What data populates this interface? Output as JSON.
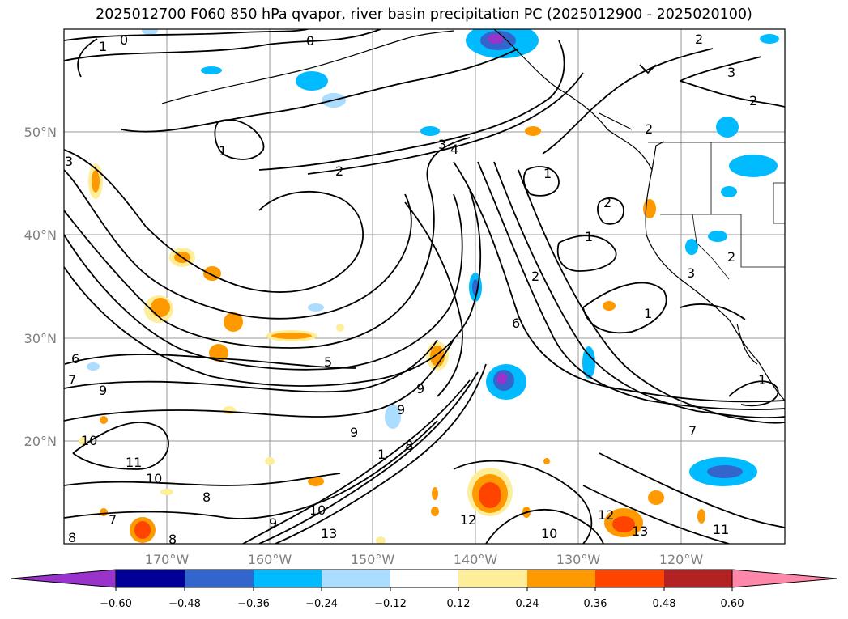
{
  "title": "2025012700 F060 850 hPa qvapor, river basin precipitation PC (2025012900 - 2025020100)",
  "lat_labels": [
    "50°N",
    "40°N",
    "30°N",
    "20°N"
  ],
  "lon_labels": [
    "170°W",
    "160°W",
    "150°W",
    "140°W",
    "130°W",
    "120°W"
  ],
  "colorbar": {
    "colors": [
      "#9933cc",
      "#000099",
      "#3366cc",
      "#00bbff",
      "#aaddff",
      "#ffffff",
      "#ffee99",
      "#ff9900",
      "#ff4400",
      "#b22222",
      "#ff88aa"
    ],
    "tick_labels": [
      "−0.60",
      "−0.48",
      "−0.36",
      "−0.24",
      "−0.12",
      "0.12",
      "0.24",
      "0.36",
      "0.48",
      "0.60"
    ]
  },
  "contour_labels": [
    "0",
    "1",
    "2",
    "3",
    "4",
    "5",
    "6",
    "7",
    "8",
    "9",
    "10",
    "11",
    "12",
    "13"
  ]
}
